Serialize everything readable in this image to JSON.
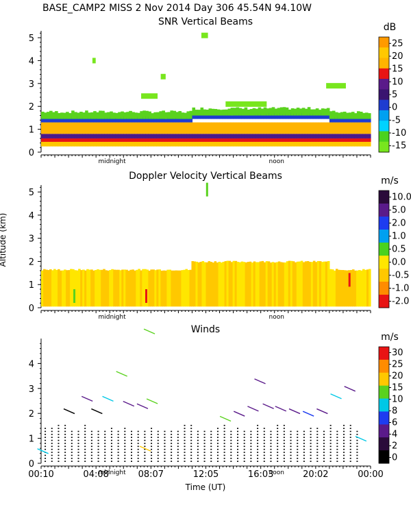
{
  "header": {
    "text": "BASE_CAMP2 MISS    2 Nov 2014 Day 306 45.54N  94.10W"
  },
  "shared_axes": {
    "y_axis_label": "Altitude (km)",
    "x_axis_label": "Time (UT)",
    "x_time_labels": [
      "00:10",
      "04:08",
      "08:07",
      "12:05",
      "16:03",
      "20:02",
      "00:00"
    ],
    "x_annotations": [
      "midnight",
      "noon"
    ]
  },
  "colors": {
    "snr_scale": [
      "#00c8e6",
      "#1e6cf0",
      "#5a2ca8",
      "#2a0a5a",
      "#e81414",
      "#ff8c00",
      "#ffc800",
      "#ffe600"
    ],
    "doppler_scale": [
      "#e81414",
      "#ff8c00",
      "#ffc800",
      "#ffe600",
      "#5ad21e",
      "#00c8e6",
      "#1e6cf0",
      "#5a2ca8",
      "#2a0a5a"
    ],
    "wind_scale": [
      "#000000",
      "#5a2ca8",
      "#2a0a5a",
      "#1e3cf0",
      "#00c8e6",
      "#5ad21e",
      "#ffc800",
      "#ff8c00",
      "#e81414"
    ]
  },
  "chart_data": [
    {
      "type": "heatmap",
      "title": "SNR Vertical Beams",
      "xlabel": "",
      "ylabel": "",
      "x_range_hours": [
        0.17,
        24.0
      ],
      "ylim": [
        0,
        5.3
      ],
      "y_ticks": [
        0,
        1,
        2,
        3,
        4,
        5
      ],
      "colorbar": {
        "unit": "dB",
        "tick_labels": [
          "25",
          "20",
          "15",
          "10",
          "5",
          "0",
          "-5",
          "-10",
          "-15"
        ],
        "colors": [
          "#ff9a00",
          "#ffc800",
          "#ffb400",
          "#e81414",
          "#5a1a8a",
          "#3a1470",
          "#1e3cd0",
          "#00a0f0",
          "#00d2ff",
          "#4ad21e",
          "#78e61e"
        ]
      },
      "bands": [
        {
          "from_km": 0.25,
          "to_km": 0.45,
          "level_db": 22
        },
        {
          "from_km": 0.45,
          "to_km": 0.6,
          "level_db": 14
        },
        {
          "from_km": 0.6,
          "to_km": 0.8,
          "level_db": 6
        },
        {
          "from_km": 0.8,
          "to_km": 1.3,
          "level_db": 20
        },
        {
          "from_km": 1.3,
          "to_km": 1.45,
          "level_db": 0
        },
        {
          "from_km": 1.45,
          "to_km": 1.7,
          "level_db": -10
        }
      ]
    },
    {
      "type": "heatmap",
      "title": "Doppler Velocity Vertical Beams",
      "xlabel": "",
      "ylabel": "Altitude (km)",
      "x_range_hours": [
        0.17,
        24.0
      ],
      "ylim": [
        0,
        5.3
      ],
      "y_ticks": [
        0,
        1,
        2,
        3,
        4,
        5
      ],
      "colorbar": {
        "unit": "m/s",
        "tick_labels": [
          "10.0",
          "5.0",
          "2.0",
          "1.0",
          "0.5",
          "0.0",
          "-0.5",
          "-1.0",
          "-2.0"
        ],
        "colors": [
          "#2a0a3a",
          "#5a1a8a",
          "#1e3cf0",
          "#00a0f0",
          "#4ad21e",
          "#ffe600",
          "#ffc800",
          "#ff8c00",
          "#e81414"
        ]
      },
      "dominant_velocity_ms": 0.0,
      "layer_top_km": 1.6
    },
    {
      "type": "scatter",
      "title": "Winds",
      "xlabel": "Time (UT)",
      "ylabel": "",
      "x_range_hours": [
        0.17,
        24.0
      ],
      "ylim": [
        0,
        5
      ],
      "y_ticks": [
        0,
        1,
        2,
        3,
        4
      ],
      "colorbar": {
        "unit": "m/s",
        "tick_labels": [
          "30",
          "25",
          "20",
          "15",
          "10",
          "8",
          "6",
          "4",
          "2",
          "0"
        ],
        "colors": [
          "#e81414",
          "#ff8c00",
          "#ffc800",
          "#5ad21e",
          "#00c8e6",
          "#1e3cf0",
          "#5a1a8a",
          "#2a0a3a",
          "#000000"
        ]
      },
      "low_level_columns_top_km": 1.6,
      "barbs": [
        {
          "time_h": 8.0,
          "alt_km": 5.3,
          "speed_ms": 15
        },
        {
          "time_h": 6.0,
          "alt_km": 3.6,
          "speed_ms": 15
        },
        {
          "time_h": 3.5,
          "alt_km": 2.6,
          "speed_ms": 4
        },
        {
          "time_h": 5.0,
          "alt_km": 2.6,
          "speed_ms": 10
        },
        {
          "time_h": 6.5,
          "alt_km": 2.4,
          "speed_ms": 4
        },
        {
          "time_h": 7.5,
          "alt_km": 2.3,
          "speed_ms": 4
        },
        {
          "time_h": 8.2,
          "alt_km": 2.5,
          "speed_ms": 15
        },
        {
          "time_h": 2.2,
          "alt_km": 2.1,
          "speed_ms": 0
        },
        {
          "time_h": 4.2,
          "alt_km": 2.1,
          "speed_ms": 0
        },
        {
          "time_h": 13.5,
          "alt_km": 1.8,
          "speed_ms": 15
        },
        {
          "time_h": 14.5,
          "alt_km": 2.0,
          "speed_ms": 4
        },
        {
          "time_h": 15.5,
          "alt_km": 2.2,
          "speed_ms": 4
        },
        {
          "time_h": 16.0,
          "alt_km": 3.3,
          "speed_ms": 4
        },
        {
          "time_h": 16.6,
          "alt_km": 2.3,
          "speed_ms": 4
        },
        {
          "time_h": 17.5,
          "alt_km": 2.2,
          "speed_ms": 4
        },
        {
          "time_h": 18.5,
          "alt_km": 2.1,
          "speed_ms": 4
        },
        {
          "time_h": 19.5,
          "alt_km": 2.0,
          "speed_ms": 6
        },
        {
          "time_h": 20.5,
          "alt_km": 2.1,
          "speed_ms": 4
        },
        {
          "time_h": 21.5,
          "alt_km": 2.7,
          "speed_ms": 10
        },
        {
          "time_h": 22.5,
          "alt_km": 3.0,
          "speed_ms": 4
        },
        {
          "time_h": 23.3,
          "alt_km": 1.0,
          "speed_ms": 10
        },
        {
          "time_h": 0.3,
          "alt_km": 0.5,
          "speed_ms": 10
        },
        {
          "time_h": 7.7,
          "alt_km": 0.6,
          "speed_ms": 20
        }
      ]
    }
  ]
}
